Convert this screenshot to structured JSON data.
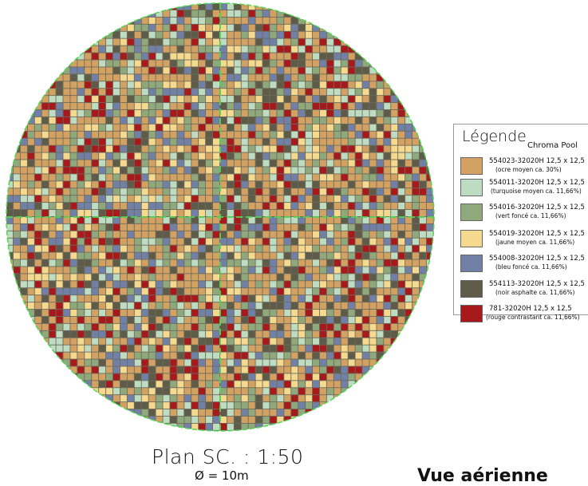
{
  "mosaic": {
    "tile_colors": [
      "#d3a263",
      "#bedcc2",
      "#8fa97c",
      "#f5d98e",
      "#7180a7",
      "#5e5c49",
      "#a8191c"
    ],
    "tile_weights": [
      30,
      11.66,
      11.66,
      11.66,
      11.66,
      11.66,
      11.66
    ],
    "outline_color": "#4fd64f",
    "axis_color": "#4fd64f"
  },
  "legend": {
    "title": "Légende",
    "subtitle": "Chroma Pool",
    "items": [
      {
        "color": "#d3a263",
        "code": "554023-32020H 12,5 x 12,5",
        "desc": "(ocre moyen ca. 30%)"
      },
      {
        "color": "#bedcc2",
        "code": "554011-32020H 12,5 x 12,5",
        "desc": "(turquoise moyen ca. 11,66%)"
      },
      {
        "color": "#8fa97c",
        "code": "554016-32020H 12,5 x 12,5",
        "desc": "(vert foncé ca. 11,66%)"
      },
      {
        "color": "#f5d98e",
        "code": "554019-32020H 12,5 x 12,5",
        "desc": "(jaune moyen ca. 11,66%)"
      },
      {
        "color": "#7180a7",
        "code": "554008-32020H 12,5 x 12,5",
        "desc": "(bleu foncé ca. 11,66%)"
      },
      {
        "color": "#5e5c49",
        "code": "554113-32020H 12,5 x 12,5",
        "desc": "(noir asphalte ca. 11,66%)"
      },
      {
        "color": "#a8191c",
        "code": "781-32020H 12,5 x 12,5",
        "desc": "(rouge contrastant ca. 11,66%)"
      }
    ]
  },
  "plan": {
    "title": "Plan SC. : 1:50",
    "diameter": "Ø = 10m"
  },
  "view_title": "Vue aérienne"
}
